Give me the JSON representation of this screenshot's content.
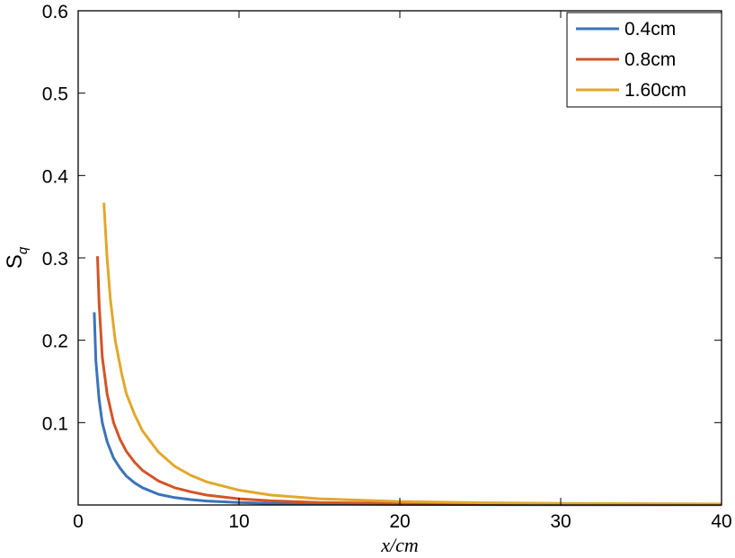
{
  "chart_data": {
    "type": "line",
    "xlabel": "x/cm",
    "ylabel": "S",
    "ylabel_subscript": "q",
    "xlim": [
      0,
      40
    ],
    "ylim": [
      0,
      0.6
    ],
    "x_ticks": [
      0,
      10,
      20,
      30,
      40
    ],
    "y_ticks": [
      0.1,
      0.2,
      0.3,
      0.4,
      0.5,
      0.6
    ],
    "grid": false,
    "legend_position": "top-right",
    "series": [
      {
        "name": "0.4cm",
        "color": "#3b73b9",
        "points": [
          [
            1.0,
            0.234
          ],
          [
            1.1,
            0.175
          ],
          [
            1.3,
            0.128
          ],
          [
            1.5,
            0.1
          ],
          [
            1.8,
            0.077
          ],
          [
            2.2,
            0.057
          ],
          [
            2.6,
            0.045
          ],
          [
            3.0,
            0.035
          ],
          [
            3.5,
            0.027
          ],
          [
            4.0,
            0.021
          ],
          [
            5.0,
            0.013
          ],
          [
            6.0,
            0.009
          ],
          [
            7.0,
            0.0065
          ],
          [
            8.0,
            0.0048
          ],
          [
            10.0,
            0.003
          ],
          [
            12.0,
            0.002
          ],
          [
            15.0,
            0.0012
          ],
          [
            20.0,
            0.0007
          ],
          [
            25.0,
            0.0004
          ],
          [
            30.0,
            0.0003
          ],
          [
            40.0,
            0.0002
          ]
        ]
      },
      {
        "name": "0.8cm",
        "color": "#d35427",
        "points": [
          [
            1.2,
            0.302
          ],
          [
            1.3,
            0.245
          ],
          [
            1.5,
            0.18
          ],
          [
            1.8,
            0.135
          ],
          [
            2.2,
            0.1
          ],
          [
            2.6,
            0.08
          ],
          [
            3.0,
            0.065
          ],
          [
            3.5,
            0.052
          ],
          [
            4.0,
            0.042
          ],
          [
            5.0,
            0.029
          ],
          [
            6.0,
            0.021
          ],
          [
            7.0,
            0.016
          ],
          [
            8.0,
            0.012
          ],
          [
            10.0,
            0.0075
          ],
          [
            12.0,
            0.005
          ],
          [
            15.0,
            0.003
          ],
          [
            20.0,
            0.0017
          ],
          [
            25.0,
            0.0011
          ],
          [
            30.0,
            0.0008
          ],
          [
            40.0,
            0.0005
          ]
        ]
      },
      {
        "name": "1.60cm",
        "color": "#e2a72c",
        "points": [
          [
            1.6,
            0.367
          ],
          [
            1.8,
            0.3
          ],
          [
            2.0,
            0.25
          ],
          [
            2.3,
            0.2
          ],
          [
            2.7,
            0.16
          ],
          [
            3.0,
            0.135
          ],
          [
            3.5,
            0.11
          ],
          [
            4.0,
            0.09
          ],
          [
            5.0,
            0.064
          ],
          [
            6.0,
            0.047
          ],
          [
            7.0,
            0.036
          ],
          [
            8.0,
            0.028
          ],
          [
            10.0,
            0.018
          ],
          [
            12.0,
            0.012
          ],
          [
            15.0,
            0.0075
          ],
          [
            20.0,
            0.0042
          ],
          [
            25.0,
            0.0027
          ],
          [
            30.0,
            0.002
          ],
          [
            40.0,
            0.0012
          ]
        ]
      }
    ]
  }
}
